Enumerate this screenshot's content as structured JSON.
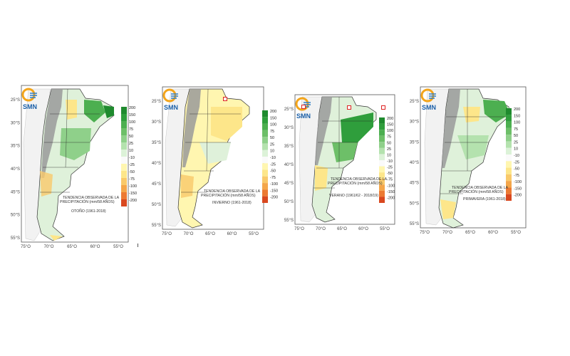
{
  "brand": {
    "logo_text": "SMN"
  },
  "title_lines": [
    "TENDENCIA OBSERVADA DE LA",
    "PRECIPITACIÓN (mm/58 AÑOS)"
  ],
  "colorbar": {
    "levels": [
      "200",
      "150",
      "100",
      "75",
      "50",
      "25",
      "10",
      "-10",
      "-25",
      "-50",
      "-75",
      "-100",
      "-150",
      "-200"
    ],
    "colors": [
      "#1f8a2e",
      "#2f9e3c",
      "#4caf50",
      "#6dbf68",
      "#8fd08a",
      "#b4e2ae",
      "#dcf2d8",
      "#fafafa",
      "#fff6b0",
      "#fde68a",
      "#f9c96a",
      "#f4a64a",
      "#ec7a33",
      "#d9481f"
    ]
  },
  "panels": [
    {
      "name": "otono",
      "season_label": "OTOÑO (1961-2018)",
      "title_lines": [
        "TENDENCIA OBSERVADA DE LA",
        "PRECIPITACIÓN (mm/58 AÑOS)"
      ],
      "lat_labels": [
        "25°S",
        "30°S",
        "35°S",
        "40°S",
        "45°S",
        "50°S",
        "55°S"
      ],
      "lon_labels": [
        "75°O",
        "70°O",
        "65°O",
        "60°O",
        "55°O"
      ]
    },
    {
      "name": "invierno",
      "season_label": "INVIERNO (1961-2018)",
      "title_lines": [
        "TENDENCIA OBSERVADA DE LA",
        "PRECIPITACIÓN (mm/58 AÑOS)"
      ],
      "lat_labels": [
        "25°S",
        "30°S",
        "35°S",
        "40°S",
        "45°S",
        "50°S",
        "55°S"
      ],
      "lon_labels": [
        "75°O",
        "70°O",
        "65°O",
        "60°O",
        "55°O"
      ]
    },
    {
      "name": "verano",
      "season_label": "VERANO (1961/62 - 2018/19)",
      "title_lines": [
        "TENDENCIA OBSERVADA DE LA",
        "PRECIPITACIÓN (mm/58 AÑOS)"
      ],
      "lat_labels": [
        "25°S",
        "30°S",
        "35°S",
        "40°S",
        "45°S",
        "50°S",
        "55°S"
      ],
      "lon_labels": [
        "75°O",
        "70°O",
        "65°O",
        "60°O",
        "55°O"
      ]
    },
    {
      "name": "primavera",
      "season_label": "PRIMAVERA (1961-2018)",
      "title_lines": [
        "TENDENCIA OBSERVADA DE LA",
        "PRECIPITACIÓN (mm/58 AÑOS)"
      ],
      "lat_labels": [
        "25°S",
        "30°S",
        "35°S",
        "40°S",
        "45°S",
        "50°S",
        "55°S"
      ],
      "lon_labels": [
        "75°O",
        "70°O",
        "65°O",
        "60°O",
        "55°O"
      ]
    }
  ]
}
